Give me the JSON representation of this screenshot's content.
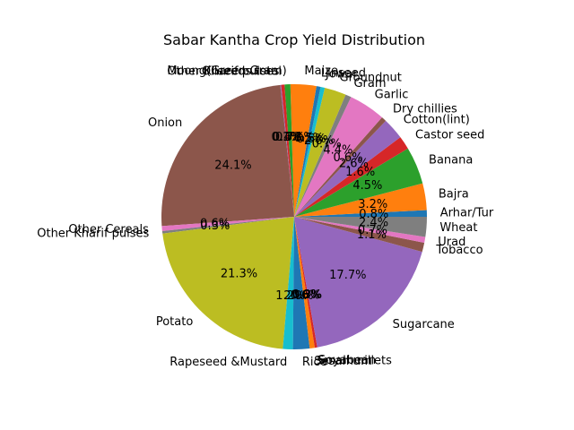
{
  "chart_data": {
    "type": "pie",
    "title": "Sabar Kantha Crop Yield Distribution",
    "start_angle_deg": 0,
    "direction": "counterclockwise",
    "slices": [
      {
        "label": "Arhar/Tur",
        "value": 0.8,
        "pct_label": "0.8%",
        "color": "#1f77b4"
      },
      {
        "label": "Bajra",
        "value": 3.2,
        "pct_label": "3.2%",
        "color": "#ff7f0e"
      },
      {
        "label": "Banana",
        "value": 4.5,
        "pct_label": "4.5%",
        "color": "#2ca02c"
      },
      {
        "label": "Castor seed",
        "value": 1.6,
        "pct_label": "1.6%",
        "color": "#d62728"
      },
      {
        "label": "Cotton(lint)",
        "value": 2.6,
        "pct_label": "2.6%",
        "color": "#9467bd"
      },
      {
        "label": "Dry chillies",
        "value": 0.6,
        "pct_label": "0.6%",
        "color": "#8c564b"
      },
      {
        "label": "Garlic",
        "value": 4.4,
        "pct_label": "4.4%",
        "color": "#e377c2"
      },
      {
        "label": "Gram",
        "value": 0.7,
        "pct_label": "0.7%",
        "color": "#7f7f7f"
      },
      {
        "label": "Groundnut",
        "value": 2.6,
        "pct_label": "2.6%",
        "color": "#bcbd22"
      },
      {
        "label": "Jowar",
        "value": 0.5,
        "pct_label": "0.5%",
        "color": "#17becf"
      },
      {
        "label": "Linseed",
        "value": 0.5,
        "pct_label": "0.5%",
        "color": "#1f77b4"
      },
      {
        "label": "Maize",
        "value": 3.1,
        "pct_label": "3.1%",
        "color": "#ff7f0e"
      },
      {
        "label": "Moong(Green Gram)",
        "value": 0.7,
        "pct_label": "0.7%",
        "color": "#2ca02c"
      },
      {
        "label": "Oilseeds total",
        "value": 0.4,
        "pct_label": "0.4%",
        "color": "#d62728"
      },
      {
        "label": "Other Kharif pulses",
        "value": 0.1,
        "pct_label": "0.1%",
        "color": "#9467bd"
      },
      {
        "label": "Onion",
        "value": 24.1,
        "pct_label": "24.1%",
        "color": "#8c564b"
      },
      {
        "label": "Other Cereals",
        "value": 0.6,
        "pct_label": "0.6%",
        "color": "#e377c2"
      },
      {
        "label": "Other Kharif pulses",
        "value": 0.3,
        "pct_label": "0.3%",
        "color": "#7f7f7f"
      },
      {
        "label": "Potato",
        "value": 21.3,
        "pct_label": "21.3%",
        "color": "#bcbd22"
      },
      {
        "label": "Rapeseed &Mustard",
        "value": 1.2,
        "pct_label": "1.2%",
        "color": "#17becf"
      },
      {
        "label": "Rice",
        "value": 2.0,
        "pct_label": "2.0%",
        "color": "#1f77b4"
      },
      {
        "label": "Sesamum",
        "value": 0.6,
        "pct_label": "0.6%",
        "color": "#ff7f0e"
      },
      {
        "label": "Small millets",
        "value": 0.0,
        "pct_label": "0.0%",
        "color": "#2ca02c"
      },
      {
        "label": "Soyabean",
        "value": 0.3,
        "pct_label": "0.3%",
        "color": "#d62728"
      },
      {
        "label": "Sugarcane",
        "value": 17.7,
        "pct_label": "17.7%",
        "color": "#9467bd"
      },
      {
        "label": "Tobacco",
        "value": 1.1,
        "pct_label": "1.1%",
        "color": "#8c564b"
      },
      {
        "label": "Urad",
        "value": 0.7,
        "pct_label": "0.7%",
        "color": "#e377c2"
      },
      {
        "label": "Wheat",
        "value": 2.4,
        "pct_label": "2.4%",
        "color": "#7f7f7f"
      }
    ]
  }
}
